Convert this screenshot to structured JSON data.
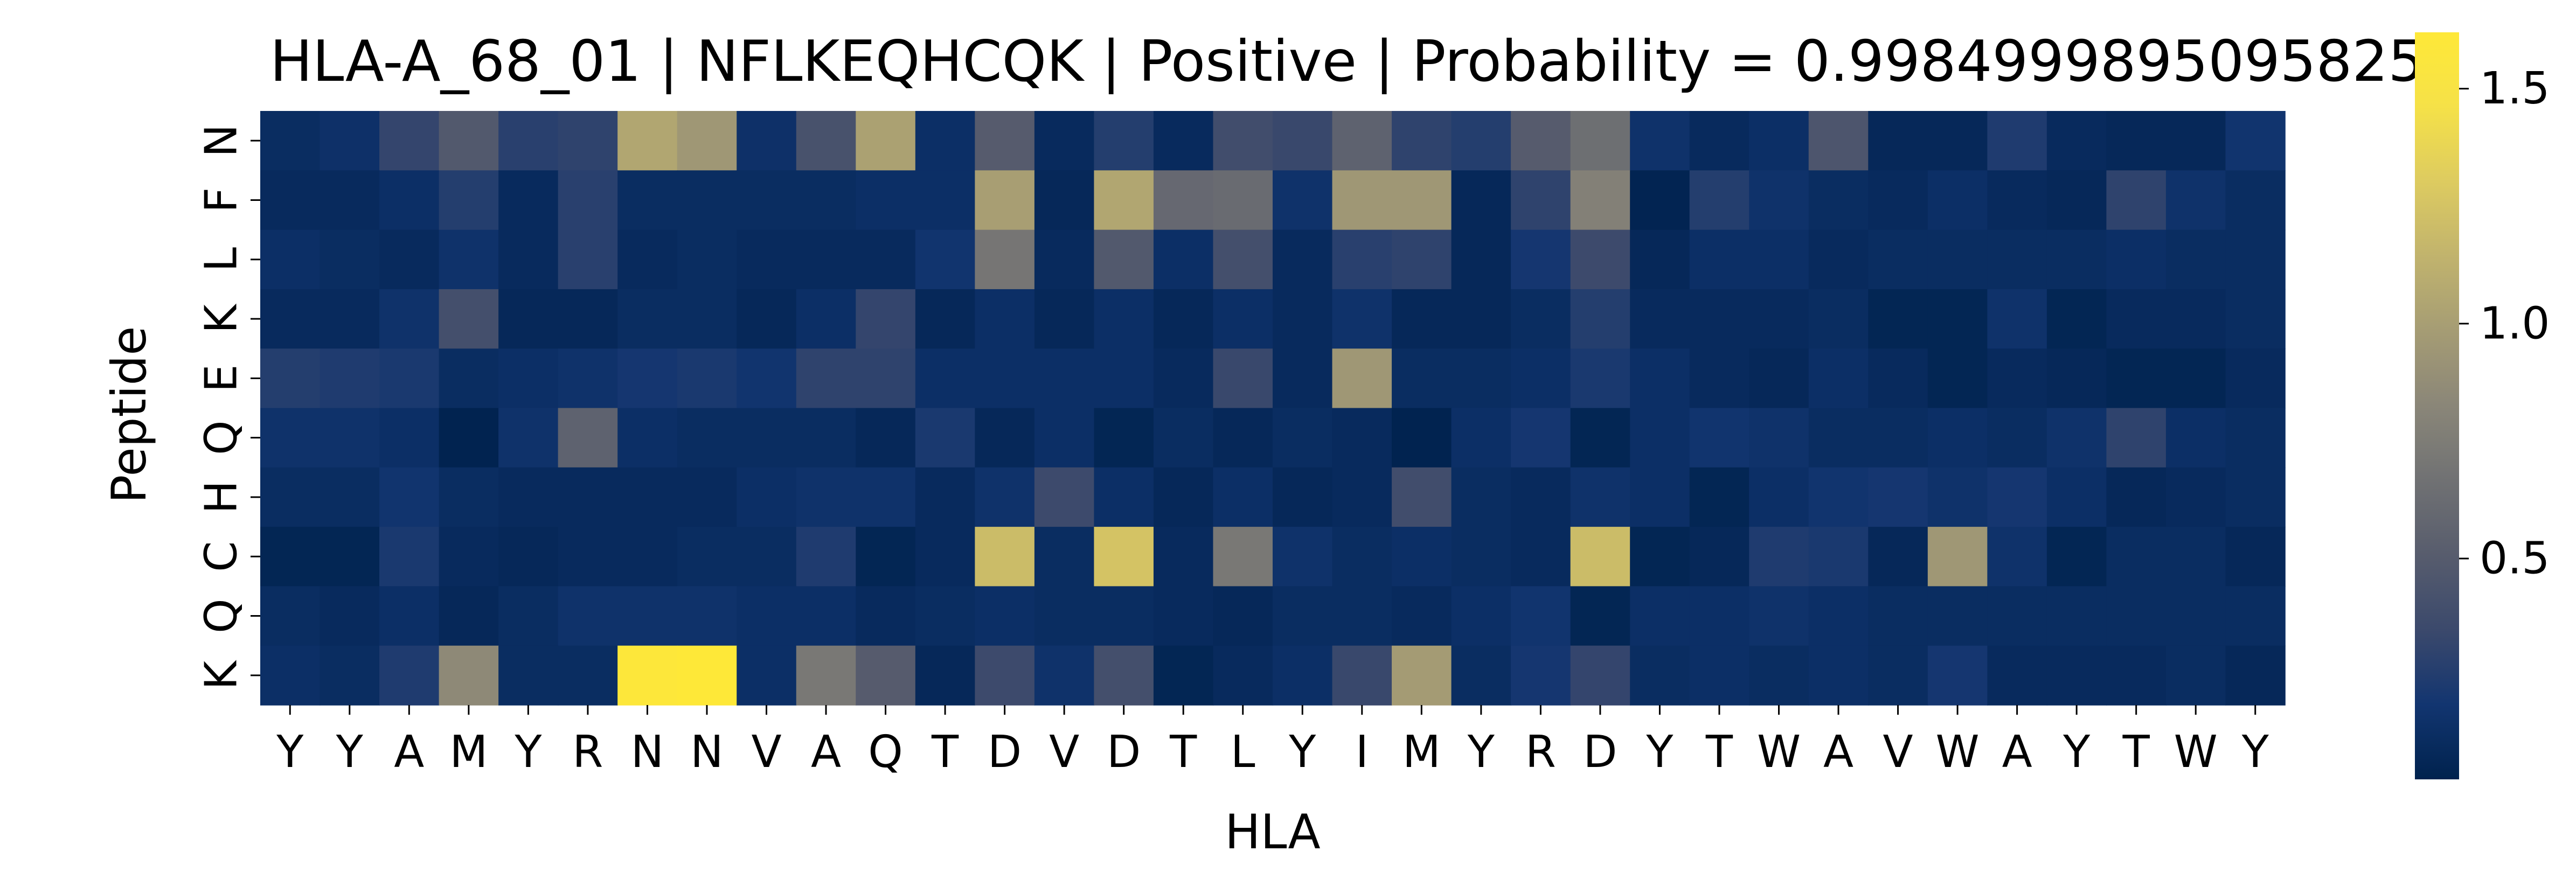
{
  "chart_data": {
    "type": "heatmap",
    "title": "HLA-A_68_01 | NFLKEQHCQK | Positive | Probability = 0.9984999895095825",
    "xlabel": "HLA",
    "ylabel": "Peptide",
    "x_categories": [
      "Y",
      "Y",
      "A",
      "M",
      "Y",
      "R",
      "N",
      "N",
      "V",
      "A",
      "Q",
      "T",
      "D",
      "V",
      "D",
      "T",
      "L",
      "Y",
      "I",
      "M",
      "Y",
      "R",
      "D",
      "Y",
      "T",
      "W",
      "A",
      "V",
      "W",
      "A",
      "Y",
      "T",
      "W",
      "Y"
    ],
    "y_categories": [
      "N",
      "F",
      "L",
      "K",
      "E",
      "Q",
      "H",
      "C",
      "Q",
      "K"
    ],
    "values": [
      [
        0.12,
        0.15,
        0.32,
        0.48,
        0.28,
        0.3,
        1.05,
        0.95,
        0.15,
        0.42,
        1.02,
        0.14,
        0.5,
        0.1,
        0.26,
        0.1,
        0.38,
        0.34,
        0.55,
        0.3,
        0.26,
        0.5,
        0.65,
        0.16,
        0.1,
        0.14,
        0.45,
        0.08,
        0.08,
        0.24,
        0.1,
        0.08,
        0.08,
        0.18
      ],
      [
        0.1,
        0.1,
        0.14,
        0.26,
        0.1,
        0.28,
        0.12,
        0.12,
        0.12,
        0.12,
        0.14,
        0.14,
        1.0,
        0.08,
        1.05,
        0.6,
        0.62,
        0.16,
        0.95,
        0.95,
        0.08,
        0.3,
        0.78,
        0.05,
        0.26,
        0.16,
        0.12,
        0.1,
        0.14,
        0.1,
        0.08,
        0.3,
        0.16,
        0.12
      ],
      [
        0.14,
        0.12,
        0.1,
        0.16,
        0.1,
        0.28,
        0.1,
        0.12,
        0.1,
        0.1,
        0.1,
        0.18,
        0.7,
        0.1,
        0.48,
        0.14,
        0.4,
        0.1,
        0.28,
        0.3,
        0.08,
        0.2,
        0.36,
        0.08,
        0.14,
        0.14,
        0.1,
        0.12,
        0.12,
        0.12,
        0.12,
        0.14,
        0.12,
        0.12
      ],
      [
        0.1,
        0.1,
        0.16,
        0.4,
        0.08,
        0.08,
        0.12,
        0.12,
        0.08,
        0.14,
        0.32,
        0.08,
        0.14,
        0.08,
        0.14,
        0.08,
        0.14,
        0.1,
        0.16,
        0.08,
        0.08,
        0.12,
        0.26,
        0.1,
        0.1,
        0.1,
        0.12,
        0.06,
        0.06,
        0.16,
        0.06,
        0.1,
        0.1,
        0.12
      ],
      [
        0.26,
        0.24,
        0.22,
        0.12,
        0.14,
        0.16,
        0.2,
        0.22,
        0.18,
        0.3,
        0.3,
        0.14,
        0.14,
        0.14,
        0.14,
        0.1,
        0.34,
        0.1,
        0.95,
        0.12,
        0.12,
        0.14,
        0.22,
        0.14,
        0.1,
        0.08,
        0.14,
        0.1,
        0.06,
        0.1,
        0.08,
        0.06,
        0.06,
        0.1
      ],
      [
        0.16,
        0.16,
        0.14,
        0.04,
        0.16,
        0.55,
        0.14,
        0.12,
        0.12,
        0.12,
        0.08,
        0.22,
        0.08,
        0.14,
        0.06,
        0.12,
        0.08,
        0.12,
        0.1,
        0.04,
        0.14,
        0.2,
        0.06,
        0.14,
        0.18,
        0.16,
        0.12,
        0.12,
        0.14,
        0.12,
        0.16,
        0.3,
        0.14,
        0.12
      ],
      [
        0.12,
        0.12,
        0.18,
        0.12,
        0.1,
        0.1,
        0.1,
        0.1,
        0.14,
        0.16,
        0.16,
        0.1,
        0.16,
        0.36,
        0.14,
        0.08,
        0.14,
        0.08,
        0.1,
        0.38,
        0.12,
        0.1,
        0.16,
        0.14,
        0.06,
        0.14,
        0.18,
        0.2,
        0.16,
        0.2,
        0.14,
        0.08,
        0.1,
        0.12
      ],
      [
        0.06,
        0.06,
        0.22,
        0.1,
        0.08,
        0.1,
        0.1,
        0.12,
        0.12,
        0.24,
        0.06,
        0.1,
        1.2,
        0.12,
        1.25,
        0.1,
        0.72,
        0.16,
        0.12,
        0.14,
        0.12,
        0.1,
        1.2,
        0.06,
        0.08,
        0.24,
        0.22,
        0.08,
        0.95,
        0.16,
        0.06,
        0.12,
        0.12,
        0.08
      ],
      [
        0.12,
        0.1,
        0.14,
        0.08,
        0.12,
        0.16,
        0.16,
        0.16,
        0.14,
        0.14,
        0.1,
        0.12,
        0.14,
        0.12,
        0.12,
        0.1,
        0.08,
        0.12,
        0.12,
        0.1,
        0.14,
        0.18,
        0.06,
        0.14,
        0.14,
        0.16,
        0.14,
        0.12,
        0.12,
        0.12,
        0.12,
        0.12,
        0.12,
        0.12
      ],
      [
        0.14,
        0.12,
        0.24,
        0.85,
        0.12,
        0.12,
        1.6,
        1.62,
        0.14,
        0.72,
        0.5,
        0.08,
        0.36,
        0.16,
        0.4,
        0.06,
        0.1,
        0.14,
        0.34,
        0.98,
        0.12,
        0.2,
        0.32,
        0.12,
        0.14,
        0.12,
        0.14,
        0.12,
        0.2,
        0.1,
        0.1,
        0.1,
        0.12,
        0.08
      ]
    ],
    "colorbar": {
      "colormap": "cividis",
      "vmin": 0.03,
      "vmax": 1.62,
      "ticks": [
        0.5,
        1.0,
        1.5
      ],
      "tick_labels": [
        "0.5",
        "1.0",
        "1.5"
      ]
    }
  }
}
